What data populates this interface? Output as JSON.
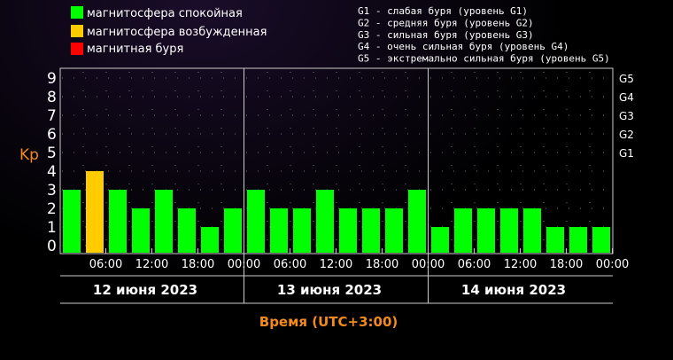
{
  "legend": {
    "quiet": {
      "label": "магнитосфера спокойная",
      "color": "#00ff00"
    },
    "unsettled": {
      "label": "магнитосфера возбужденная",
      "color": "#ffcc00"
    },
    "storm": {
      "label": "магнитная буря",
      "color": "#ff0000"
    }
  },
  "storm_levels": [
    "G1 - слабая буря (уровень G1)",
    "G2 - средняя буря (уровень G2)",
    "G3 - сильная буря (уровень G3)",
    "G4 - очень сильная буря (уровень G4)",
    "G5 - экстремально сильная буря (уровень G5)"
  ],
  "chart_data": {
    "type": "bar",
    "ylabel": "Kp",
    "xlabel": "Время (UTC+3:00)",
    "ylim": [
      0,
      9
    ],
    "yticks": [
      "0",
      "1",
      "2",
      "3",
      "4",
      "5",
      "6",
      "7",
      "8",
      "9"
    ],
    "g_ticks": [
      {
        "label": "G1",
        "kp": 5
      },
      {
        "label": "G2",
        "kp": 6
      },
      {
        "label": "G3",
        "kp": 7
      },
      {
        "label": "G4",
        "kp": 8
      },
      {
        "label": "G5",
        "kp": 9
      }
    ],
    "x_ticks": [
      "06:00",
      "12:00",
      "18:00",
      "00:00",
      "06:00",
      "12:00",
      "18:00",
      "00:00",
      "06:00",
      "12:00",
      "18:00",
      "00:00"
    ],
    "days": [
      "12 июня 2023",
      "13 июня 2023",
      "14 июня 2023"
    ],
    "values": [
      3,
      4,
      3,
      2,
      3,
      2,
      1,
      2,
      3,
      2,
      2,
      3,
      2,
      2,
      2,
      3,
      1,
      2,
      2,
      2,
      2,
      1,
      1,
      1
    ],
    "colors": {
      "quiet": "#00ff00",
      "unsettled": "#ffcc00",
      "storm": "#ff0000"
    },
    "grid": "dotted"
  }
}
